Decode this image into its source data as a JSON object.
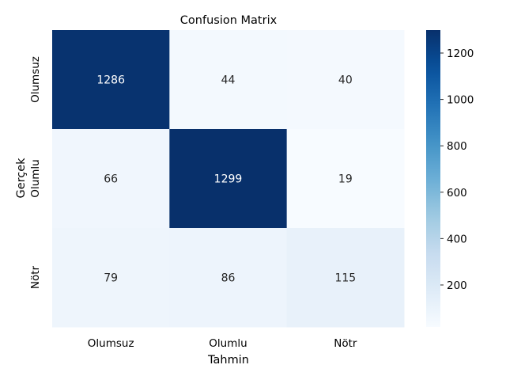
{
  "chart_data": {
    "type": "heatmap",
    "title": "Confusion Matrix",
    "xlabel": "Tahmin",
    "ylabel": "Gerçek",
    "x_categories": [
      "Olumsuz",
      "Olumlu",
      "Nötr"
    ],
    "y_categories": [
      "Olumsuz",
      "Olumlu",
      "Nötr"
    ],
    "values": [
      [
        1286,
        44,
        40
      ],
      [
        66,
        1299,
        19
      ],
      [
        79,
        86,
        115
      ]
    ],
    "colormap": "Blues",
    "colorbar": {
      "range": [
        19,
        1299
      ],
      "ticks": [
        200,
        400,
        600,
        800,
        1000,
        1200
      ]
    },
    "annotation_colors": {
      "light": "#ffffff",
      "dark": "#262626"
    }
  }
}
